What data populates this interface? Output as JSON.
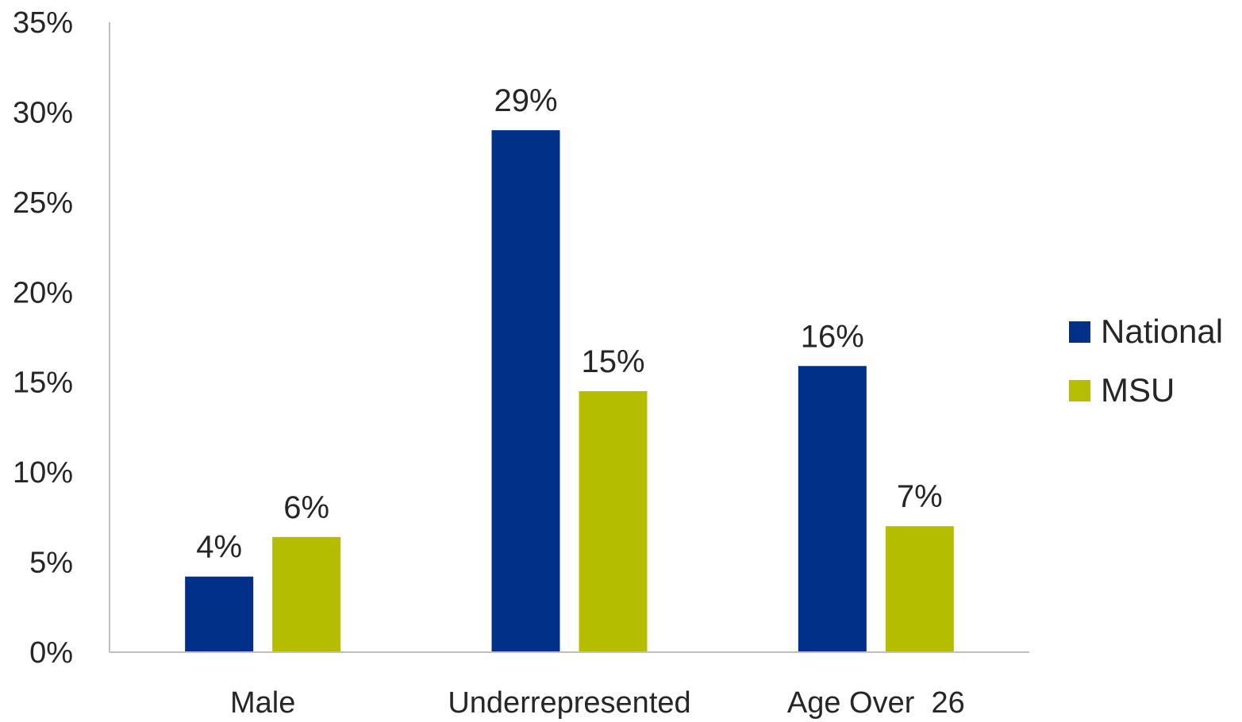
{
  "chart_data": {
    "type": "bar",
    "title": "",
    "xlabel": "",
    "ylabel": "",
    "categories": [
      "Male",
      "Underrepresented",
      "Age Over  26"
    ],
    "series": [
      {
        "name": "National",
        "values": [
          4.2,
          29.0,
          15.9
        ],
        "labels": [
          "4%",
          "29%",
          "16%"
        ],
        "color": "#003087"
      },
      {
        "name": "MSU",
        "values": [
          6.4,
          14.5,
          7.0
        ],
        "labels": [
          "6%",
          "15%",
          "7%"
        ],
        "color": "#B5BD00"
      }
    ],
    "ylim": [
      0,
      35
    ],
    "yticks": [
      0,
      5,
      10,
      15,
      20,
      25,
      30,
      35
    ],
    "ytick_labels": [
      "0%",
      "5%",
      "10%",
      "15%",
      "20%",
      "25%",
      "30%",
      "35%"
    ],
    "grid": false,
    "legend_position": "right"
  }
}
